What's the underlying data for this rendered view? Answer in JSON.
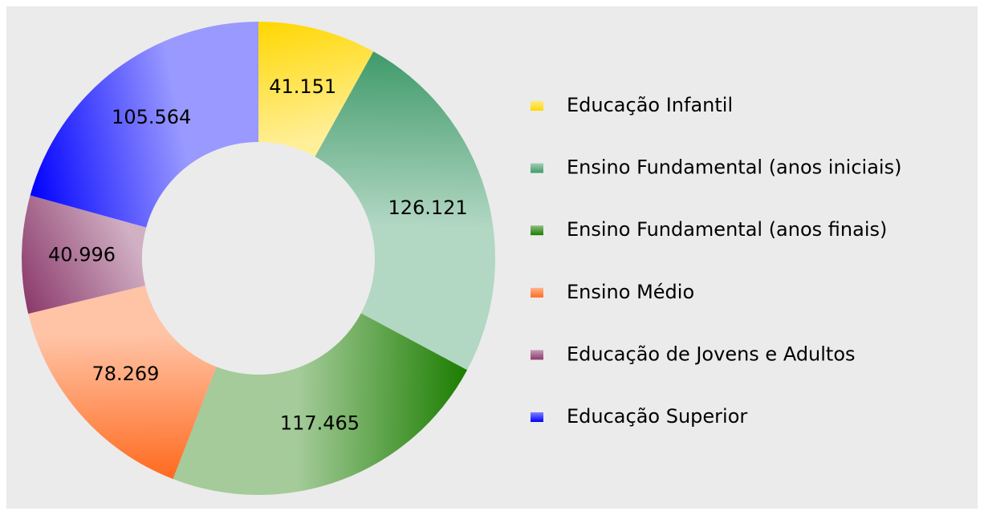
{
  "chart_data": {
    "type": "donut",
    "categories": [
      "Educação Infantil",
      "Ensino Fundamental (anos iniciais)",
      "Ensino Fundamental (anos finais)",
      "Ensino Médio",
      "Educação de Jovens e Adultos",
      "Educação Superior"
    ],
    "values": [
      41151,
      126121,
      117465,
      78269,
      40996,
      105564
    ],
    "value_labels": [
      "41.151",
      "126.121",
      "117.465",
      "78.269",
      "40.996",
      "105.564"
    ],
    "colors": [
      "#ffd700",
      "#3f9a6a",
      "#1b7d00",
      "#ff6a1f",
      "#8b3a6b",
      "#0000ff"
    ],
    "legend": "right"
  }
}
